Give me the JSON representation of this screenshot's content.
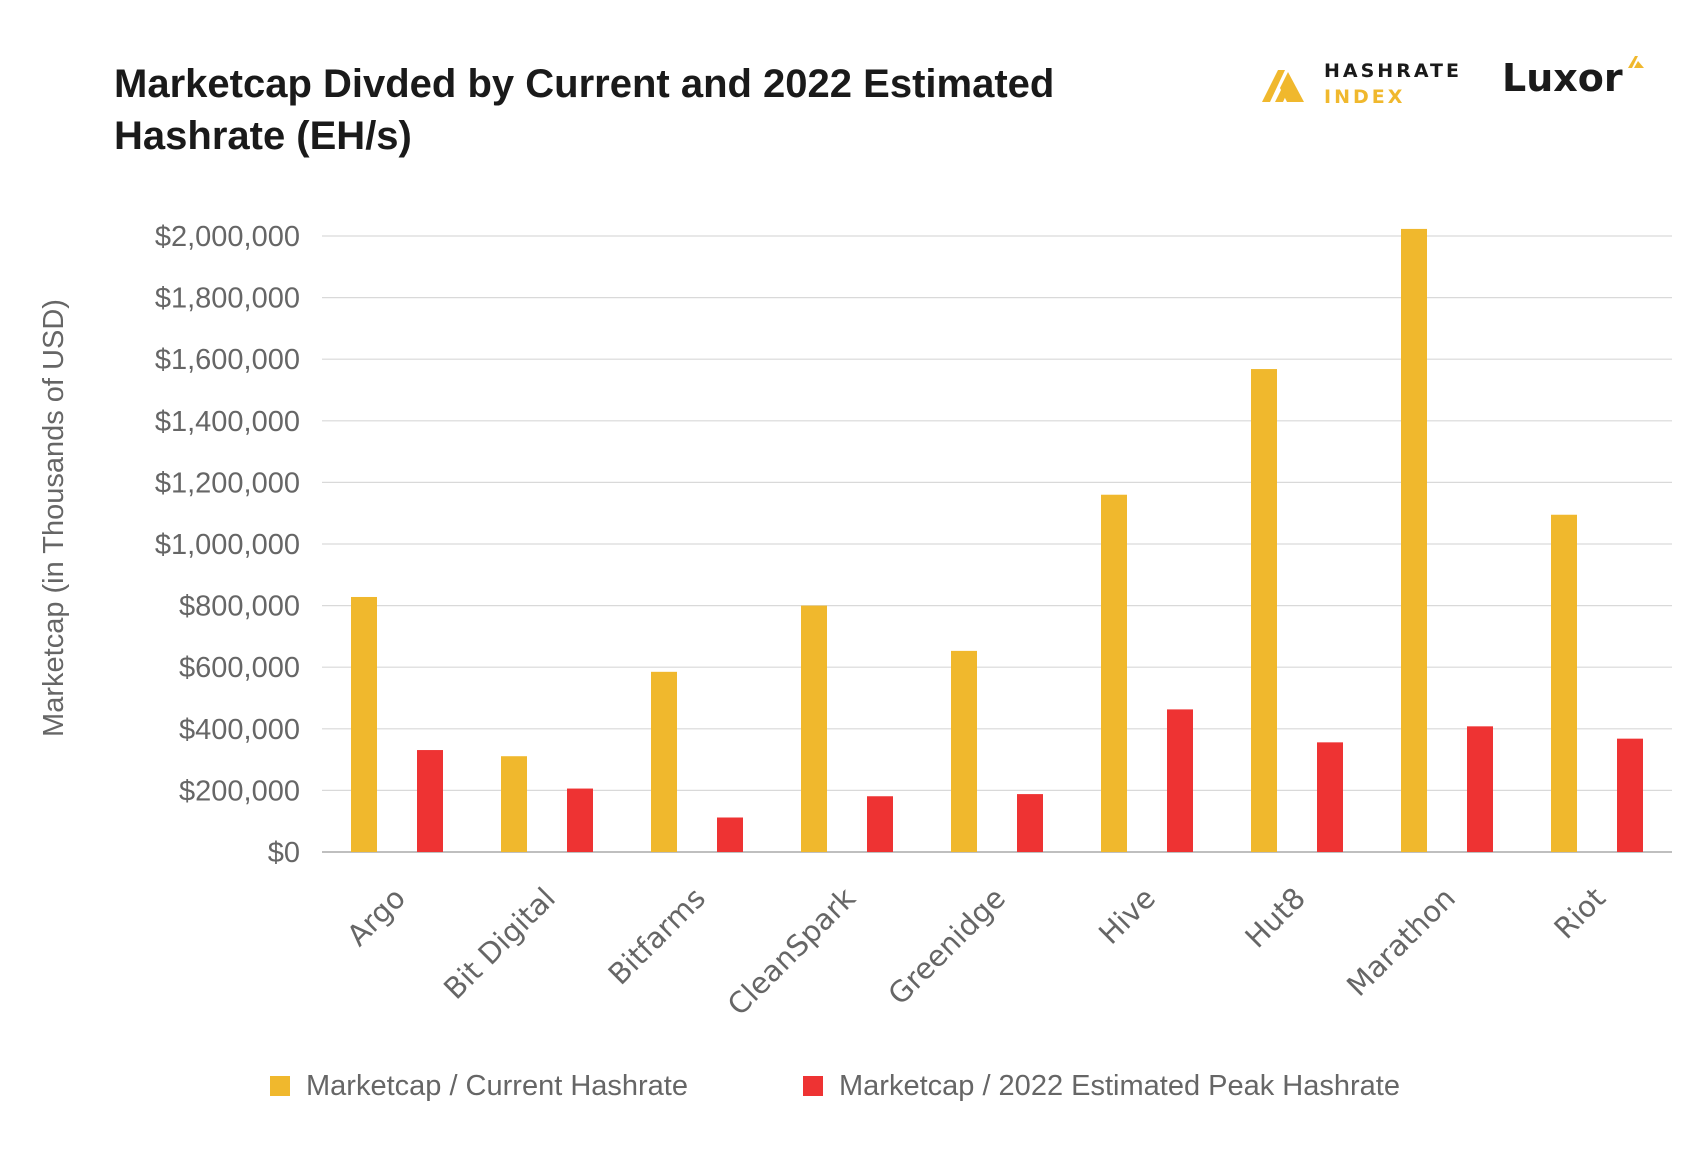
{
  "title": "Marketcap Divded by Current and 2022 Estimated Hashrate (EH/s)",
  "brands": {
    "hashrate_index": {
      "line1": "HASHRATE",
      "line2": "INDEX"
    },
    "luxor": {
      "word": "Luxor"
    }
  },
  "colors": {
    "current": "#f0b82d",
    "peak": "#ee3333",
    "grid": "#d9d9d9",
    "axis_text": "#666666",
    "title": "#1a1a1a"
  },
  "chart_data": {
    "type": "bar",
    "title": "Marketcap Divded by Current and 2022 Estimated Hashrate (EH/s)",
    "xlabel": "",
    "ylabel": "Marketcap (in Thousands of USD)",
    "ylim": [
      0,
      2000000
    ],
    "yticks": [
      0,
      200000,
      400000,
      600000,
      800000,
      1000000,
      1200000,
      1400000,
      1600000,
      1800000,
      2000000
    ],
    "ytick_labels": [
      "$0",
      "$200,000",
      "$400,000",
      "$600,000",
      "$800,000",
      "$1,000,000",
      "$1,200,000",
      "$1,400,000",
      "$1,600,000",
      "$1,800,000",
      "$2,000,000"
    ],
    "grid": true,
    "legend_position": "bottom",
    "categories": [
      "Argo",
      "Bit Digital",
      "Bitfarms",
      "CleanSpark",
      "Greenidge",
      "Hive",
      "Hut8",
      "Marathon",
      "Riot"
    ],
    "series": [
      {
        "name": "Marketcap / Current Hashrate",
        "color": "#f0b82d",
        "values": [
          828000,
          311000,
          585000,
          800000,
          653000,
          1160000,
          1568000,
          2023000,
          1095000
        ]
      },
      {
        "name": "Marketcap / 2022 Estimated Peak Hashrate",
        "color": "#ee3333",
        "values": [
          331000,
          206000,
          112000,
          181000,
          188000,
          463000,
          356000,
          408000,
          368000
        ]
      }
    ]
  }
}
